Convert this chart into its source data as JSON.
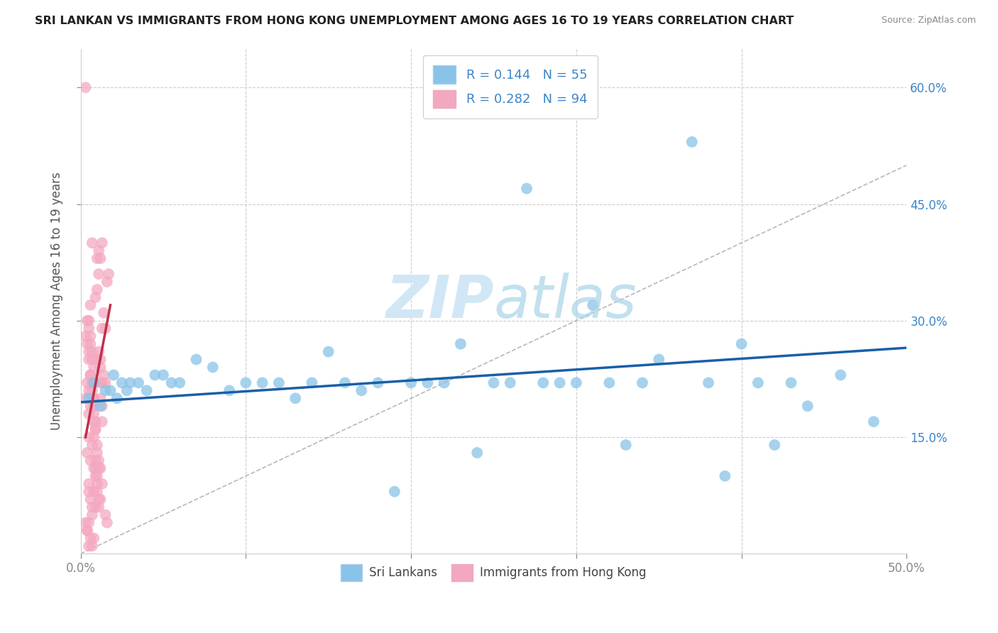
{
  "title": "SRI LANKAN VS IMMIGRANTS FROM HONG KONG UNEMPLOYMENT AMONG AGES 16 TO 19 YEARS CORRELATION CHART",
  "source": "Source: ZipAtlas.com",
  "ylabel": "Unemployment Among Ages 16 to 19 years",
  "xlim": [
    0,
    0.5
  ],
  "ylim": [
    0,
    0.65
  ],
  "ytick_positions": [
    0.15,
    0.3,
    0.45,
    0.6
  ],
  "ytick_labels": [
    "15.0%",
    "30.0%",
    "45.0%",
    "60.0%"
  ],
  "blue_color": "#89c4e8",
  "pink_color": "#f4a8c0",
  "blue_line_color": "#1a5fa8",
  "pink_line_color": "#c0304a",
  "ref_line_color": "#b0b0b0",
  "legend_text_color": "#3d85c8",
  "grid_color": "#cccccc",
  "background_color": "#ffffff",
  "watermark_color": "#cce5f5",
  "R_blue": 0.144,
  "N_blue": 55,
  "R_pink": 0.282,
  "N_pink": 94,
  "blue_x": [
    0.005,
    0.008,
    0.012,
    0.015,
    0.018,
    0.02,
    0.022,
    0.025,
    0.028,
    0.03,
    0.035,
    0.04,
    0.045,
    0.05,
    0.055,
    0.06,
    0.07,
    0.08,
    0.09,
    0.1,
    0.11,
    0.12,
    0.13,
    0.14,
    0.15,
    0.16,
    0.17,
    0.18,
    0.19,
    0.2,
    0.22,
    0.24,
    0.26,
    0.28,
    0.3,
    0.32,
    0.34,
    0.27,
    0.31,
    0.23,
    0.35,
    0.38,
    0.4,
    0.42,
    0.44,
    0.46,
    0.48,
    0.37,
    0.43,
    0.41,
    0.25,
    0.21,
    0.29,
    0.33,
    0.39
  ],
  "blue_y": [
    0.2,
    0.22,
    0.19,
    0.21,
    0.21,
    0.23,
    0.2,
    0.22,
    0.21,
    0.22,
    0.22,
    0.21,
    0.23,
    0.23,
    0.22,
    0.22,
    0.25,
    0.24,
    0.21,
    0.22,
    0.22,
    0.22,
    0.2,
    0.22,
    0.26,
    0.22,
    0.21,
    0.22,
    0.08,
    0.22,
    0.22,
    0.13,
    0.22,
    0.22,
    0.22,
    0.22,
    0.22,
    0.47,
    0.32,
    0.27,
    0.25,
    0.22,
    0.27,
    0.14,
    0.19,
    0.23,
    0.17,
    0.53,
    0.22,
    0.22,
    0.22,
    0.22,
    0.22,
    0.14,
    0.1
  ],
  "pink_x": [
    0.003,
    0.004,
    0.005,
    0.005,
    0.006,
    0.006,
    0.007,
    0.007,
    0.008,
    0.008,
    0.009,
    0.009,
    0.01,
    0.01,
    0.01,
    0.011,
    0.011,
    0.012,
    0.012,
    0.012,
    0.013,
    0.013,
    0.014,
    0.014,
    0.015,
    0.015,
    0.015,
    0.016,
    0.016,
    0.017,
    0.003,
    0.004,
    0.005,
    0.005,
    0.006,
    0.006,
    0.007,
    0.007,
    0.008,
    0.008,
    0.009,
    0.009,
    0.01,
    0.01,
    0.011,
    0.011,
    0.012,
    0.012,
    0.013,
    0.013,
    0.003,
    0.004,
    0.005,
    0.005,
    0.006,
    0.007,
    0.007,
    0.008,
    0.008,
    0.009,
    0.003,
    0.004,
    0.005,
    0.005,
    0.006,
    0.007,
    0.008,
    0.009,
    0.01,
    0.011,
    0.004,
    0.005,
    0.006,
    0.007,
    0.008,
    0.009,
    0.01,
    0.011,
    0.012,
    0.013,
    0.004,
    0.005,
    0.006,
    0.007,
    0.008,
    0.009,
    0.01,
    0.011,
    0.012,
    0.013,
    0.005,
    0.006,
    0.007,
    0.008
  ],
  "pink_y": [
    0.2,
    0.22,
    0.18,
    0.21,
    0.19,
    0.23,
    0.25,
    0.22,
    0.15,
    0.17,
    0.12,
    0.11,
    0.1,
    0.09,
    0.25,
    0.07,
    0.26,
    0.25,
    0.24,
    0.11,
    0.29,
    0.22,
    0.31,
    0.23,
    0.22,
    0.29,
    0.05,
    0.04,
    0.35,
    0.36,
    0.04,
    0.03,
    0.09,
    0.08,
    0.28,
    0.07,
    0.06,
    0.05,
    0.2,
    0.19,
    0.17,
    0.16,
    0.14,
    0.13,
    0.12,
    0.11,
    0.2,
    0.22,
    0.19,
    0.17,
    0.28,
    0.27,
    0.26,
    0.25,
    0.23,
    0.22,
    0.21,
    0.2,
    0.18,
    0.16,
    0.6,
    0.03,
    0.04,
    0.3,
    0.32,
    0.4,
    0.08,
    0.06,
    0.38,
    0.39,
    0.3,
    0.29,
    0.27,
    0.26,
    0.24,
    0.33,
    0.34,
    0.36,
    0.38,
    0.4,
    0.13,
    0.15,
    0.12,
    0.14,
    0.11,
    0.1,
    0.08,
    0.06,
    0.07,
    0.09,
    0.01,
    0.02,
    0.01,
    0.02
  ],
  "blue_trend_x": [
    0.0,
    0.5
  ],
  "blue_trend_y": [
    0.195,
    0.265
  ],
  "pink_trend_x": [
    0.003,
    0.018
  ],
  "pink_trend_y": [
    0.15,
    0.32
  ]
}
